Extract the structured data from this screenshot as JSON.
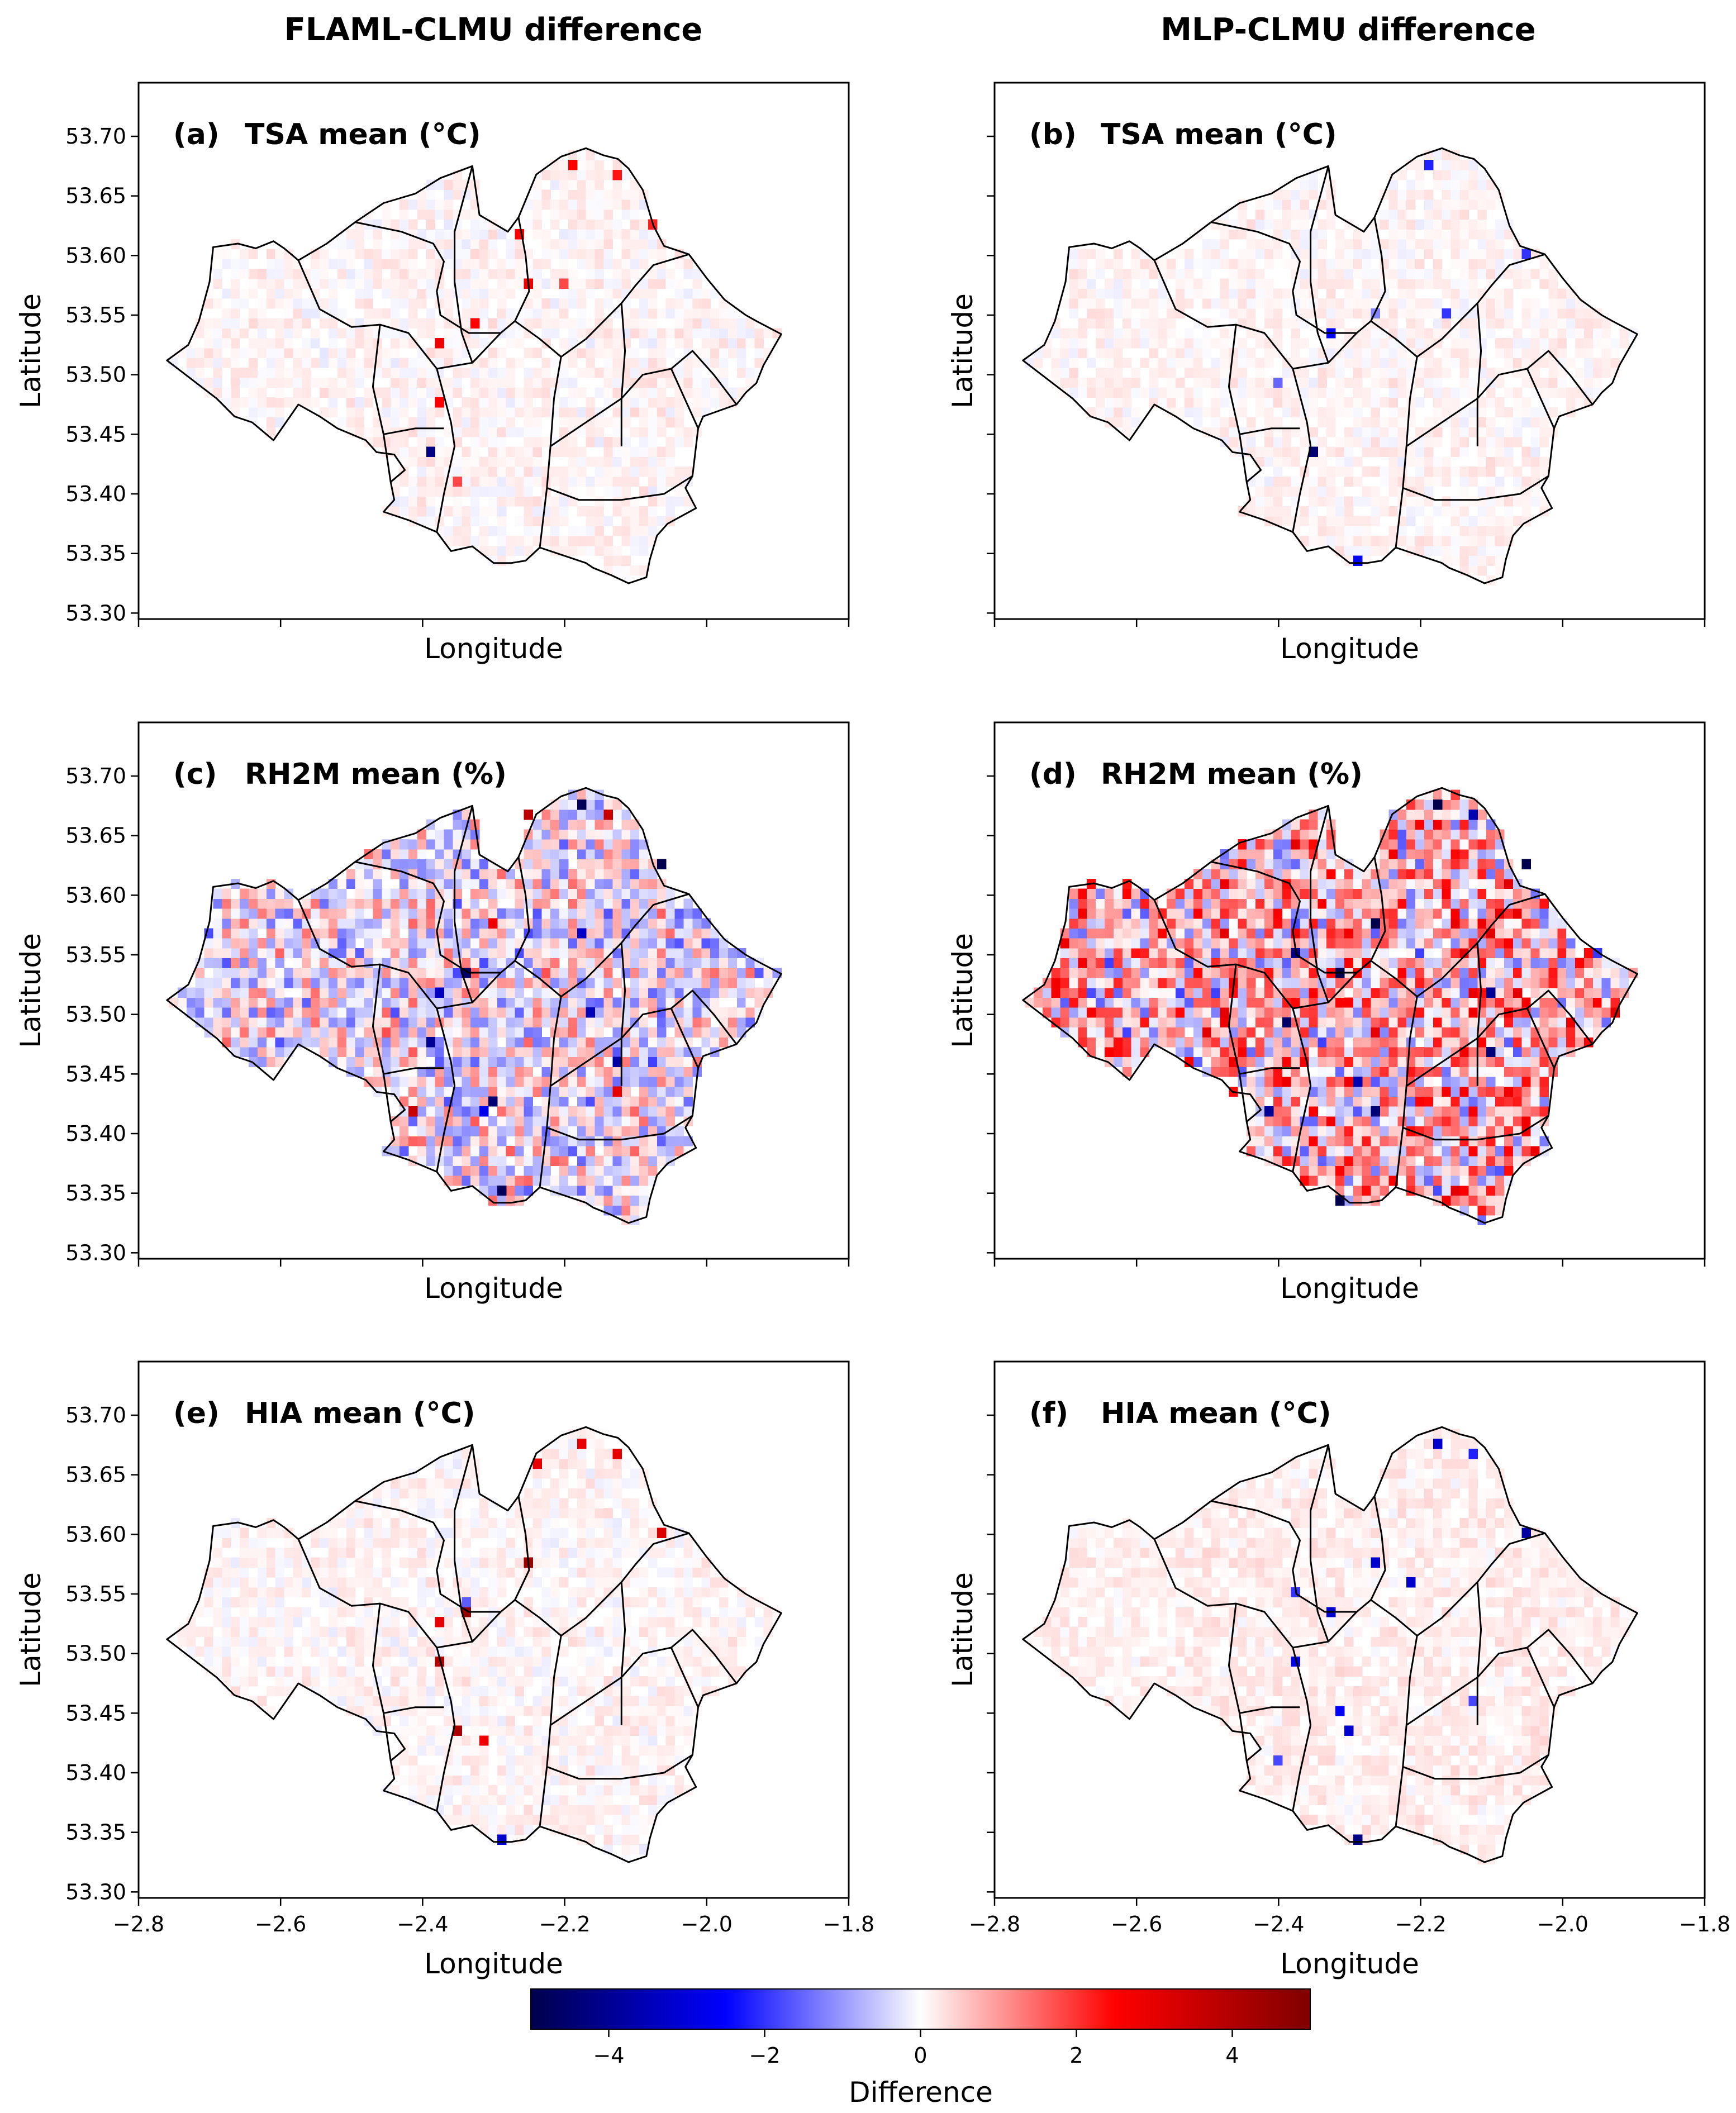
{
  "column_titles": [
    "FLAML-CLMU difference",
    "MLP-CLMU difference"
  ],
  "chart_data": [
    {
      "type": "heatmap",
      "panel": "(a)",
      "title": "TSA mean (°C)",
      "xlabel": "Longitude",
      "ylabel": "Latitude",
      "xlim": [
        -2.8,
        -1.8
      ],
      "ylim": [
        53.295,
        53.745
      ],
      "x_ticks": [
        "−2.8",
        "−2.6",
        "−2.4",
        "−2.2",
        "−2.0",
        "−1.8"
      ],
      "y_ticks": [
        "53.30",
        "53.35",
        "53.40",
        "53.45",
        "53.50",
        "53.55",
        "53.60",
        "53.65",
        "53.70"
      ],
      "x_tick_labels_shown": false,
      "y_tick_labels_shown": true,
      "intensity": 0.1,
      "noise_bias": 0.35,
      "hotspots": [
        [
          -2.395,
          53.437,
          -4.2
        ],
        [
          -2.33,
          53.542,
          2.5
        ],
        [
          -2.37,
          53.528,
          2.8
        ],
        [
          -2.38,
          53.48,
          2.5
        ],
        [
          -2.26,
          53.62,
          2.5
        ],
        [
          -2.25,
          53.58,
          2.8
        ],
        [
          -2.185,
          53.68,
          2.5
        ],
        [
          -2.13,
          53.67,
          2.3
        ],
        [
          -2.075,
          53.625,
          2.2
        ],
        [
          -2.2,
          53.58,
          1.8
        ],
        [
          -2.35,
          53.41,
          1.8
        ]
      ]
    },
    {
      "type": "heatmap",
      "panel": "(b)",
      "title": "TSA mean (°C)",
      "xlabel": "Longitude",
      "ylabel": "Latitude",
      "xlim": [
        -2.8,
        -1.8
      ],
      "ylim": [
        53.295,
        53.745
      ],
      "x_ticks": [
        "−2.8",
        "−2.6",
        "−2.4",
        "−2.2",
        "−2.0",
        "−1.8"
      ],
      "y_ticks": [
        "53.30",
        "53.35",
        "53.40",
        "53.45",
        "53.50",
        "53.55",
        "53.60",
        "53.65",
        "53.70"
      ],
      "x_tick_labels_shown": false,
      "y_tick_labels_shown": false,
      "intensity": 0.09,
      "noise_bias": 0.45,
      "hotspots": [
        [
          -2.33,
          53.537,
          -2.5
        ],
        [
          -2.345,
          53.432,
          -4.5
        ],
        [
          -2.29,
          53.345,
          -2.5
        ],
        [
          -2.185,
          53.68,
          -2.2
        ],
        [
          -2.05,
          53.6,
          -2.0
        ],
        [
          -2.165,
          53.55,
          -2.0
        ],
        [
          -2.4,
          53.49,
          -1.5
        ],
        [
          -2.27,
          53.55,
          -1.2
        ]
      ]
    },
    {
      "type": "heatmap",
      "panel": "(c)",
      "title": "RH2M mean (%)",
      "xlabel": "Longitude",
      "ylabel": "Latitude",
      "xlim": [
        -2.8,
        -1.8
      ],
      "ylim": [
        53.295,
        53.745
      ],
      "x_ticks": [
        "−2.8",
        "−2.6",
        "−2.4",
        "−2.2",
        "−2.0",
        "−1.8"
      ],
      "y_ticks": [
        "53.30",
        "53.35",
        "53.40",
        "53.45",
        "53.50",
        "53.55",
        "53.60",
        "53.65",
        "53.70"
      ],
      "x_tick_labels_shown": false,
      "y_tick_labels_shown": true,
      "intensity": 0.55,
      "noise_bias": -0.05,
      "hotspots": [
        [
          -2.335,
          53.537,
          -4.6
        ],
        [
          -2.38,
          53.522,
          -3.4
        ],
        [
          -2.39,
          53.48,
          -4.0
        ],
        [
          -2.3,
          53.43,
          -4.5
        ],
        [
          -2.29,
          53.35,
          -4.8
        ],
        [
          -2.25,
          53.67,
          3.8
        ],
        [
          -2.18,
          53.68,
          -4.8
        ],
        [
          -2.135,
          53.665,
          3.6
        ],
        [
          -2.065,
          53.625,
          -5.0
        ],
        [
          -2.3,
          53.58,
          2.8
        ],
        [
          -2.42,
          53.42,
          3.6
        ],
        [
          -2.16,
          53.5,
          -3.5
        ],
        [
          -2.13,
          53.46,
          -3.8
        ],
        [
          -2.12,
          53.435,
          3.0
        ],
        [
          -2.18,
          53.57,
          -3.3
        ],
        [
          -2.32,
          53.42,
          -2.8
        ]
      ]
    },
    {
      "type": "heatmap",
      "panel": "(d)",
      "title": "RH2M mean (%)",
      "xlabel": "Longitude",
      "ylabel": "Latitude",
      "xlim": [
        -2.8,
        -1.8
      ],
      "ylim": [
        53.295,
        53.745
      ],
      "x_ticks": [
        "−2.8",
        "−2.6",
        "−2.4",
        "−2.2",
        "−2.0",
        "−1.8"
      ],
      "y_ticks": [
        "53.30",
        "53.35",
        "53.40",
        "53.45",
        "53.50",
        "53.55",
        "53.60",
        "53.65",
        "53.70"
      ],
      "x_tick_labels_shown": false,
      "y_tick_labels_shown": false,
      "intensity": 0.8,
      "noise_bias": 0.35,
      "hotspots": [
        [
          -2.32,
          53.537,
          -5.0
        ],
        [
          -2.385,
          53.49,
          -4.6
        ],
        [
          -2.37,
          53.555,
          -4.2
        ],
        [
          -2.265,
          53.58,
          -5.0
        ],
        [
          -2.175,
          53.68,
          -5.0
        ],
        [
          -2.05,
          53.625,
          -5.0
        ],
        [
          -2.095,
          53.515,
          -4.0
        ],
        [
          -2.105,
          53.465,
          -4.4
        ],
        [
          -2.31,
          53.345,
          -5.0
        ],
        [
          -2.26,
          53.42,
          -4.4
        ],
        [
          -2.41,
          53.42,
          -4.0
        ],
        [
          -2.285,
          53.44,
          -3.6
        ],
        [
          -2.12,
          53.67,
          -3.6
        ]
      ]
    },
    {
      "type": "heatmap",
      "panel": "(e)",
      "title": "HIA mean (°C)",
      "xlabel": "Longitude",
      "ylabel": "Latitude",
      "xlim": [
        -2.8,
        -1.8
      ],
      "ylim": [
        53.295,
        53.745
      ],
      "x_ticks": [
        "−2.8",
        "−2.6",
        "−2.4",
        "−2.2",
        "−2.0",
        "−1.8"
      ],
      "y_ticks": [
        "53.30",
        "53.35",
        "53.40",
        "53.45",
        "53.50",
        "53.55",
        "53.60",
        "53.65",
        "53.70"
      ],
      "x_tick_labels_shown": true,
      "y_tick_labels_shown": true,
      "intensity": 0.1,
      "noise_bias": 0.35,
      "hotspots": [
        [
          -2.335,
          53.537,
          4.6
        ],
        [
          -2.37,
          53.528,
          3.0
        ],
        [
          -2.38,
          53.49,
          4.0
        ],
        [
          -2.35,
          53.435,
          4.2
        ],
        [
          -2.31,
          53.425,
          2.8
        ],
        [
          -2.25,
          53.58,
          4.4
        ],
        [
          -2.18,
          53.68,
          3.0
        ],
        [
          -2.24,
          53.66,
          3.0
        ],
        [
          -2.13,
          53.67,
          3.0
        ],
        [
          -2.065,
          53.6,
          3.2
        ],
        [
          -2.295,
          53.345,
          -3.2
        ],
        [
          -2.34,
          53.54,
          -1.6
        ]
      ]
    },
    {
      "type": "heatmap",
      "panel": "(f)",
      "title": "HIA mean (°C)",
      "xlabel": "Longitude",
      "ylabel": "Latitude",
      "xlim": [
        -2.8,
        -1.8
      ],
      "ylim": [
        53.295,
        53.745
      ],
      "x_ticks": [
        "−2.8",
        "−2.6",
        "−2.4",
        "−2.2",
        "−2.0",
        "−1.8"
      ],
      "y_ticks": [
        "53.30",
        "53.35",
        "53.40",
        "53.45",
        "53.50",
        "53.55",
        "53.60",
        "53.65",
        "53.70"
      ],
      "x_tick_labels_shown": true,
      "y_tick_labels_shown": false,
      "intensity": 0.09,
      "noise_bias": 0.75,
      "hotspots": [
        [
          -2.33,
          53.537,
          -3.2
        ],
        [
          -2.38,
          53.49,
          -2.8
        ],
        [
          -2.37,
          53.55,
          -2.0
        ],
        [
          -2.26,
          53.58,
          -3.2
        ],
        [
          -2.18,
          53.68,
          -3.2
        ],
        [
          -2.05,
          53.6,
          -3.8
        ],
        [
          -2.29,
          53.345,
          -4.2
        ],
        [
          -2.3,
          53.435,
          -3.2
        ],
        [
          -2.31,
          53.455,
          -2.6
        ],
        [
          -2.12,
          53.46,
          -1.8
        ],
        [
          -2.4,
          53.41,
          -1.8
        ],
        [
          -2.215,
          53.56,
          -3.2
        ],
        [
          -2.12,
          53.67,
          -2.2
        ]
      ]
    }
  ],
  "map": {
    "outline": [
      [
        -2.76,
        53.512
      ],
      [
        -2.73,
        53.525
      ],
      [
        -2.715,
        53.545
      ],
      [
        -2.7,
        53.578
      ],
      [
        -2.695,
        53.607
      ],
      [
        -2.66,
        53.61
      ],
      [
        -2.635,
        53.606
      ],
      [
        -2.61,
        53.612
      ],
      [
        -2.595,
        53.606
      ],
      [
        -2.575,
        53.596
      ],
      [
        -2.535,
        53.61
      ],
      [
        -2.495,
        53.628
      ],
      [
        -2.455,
        53.644
      ],
      [
        -2.41,
        53.652
      ],
      [
        -2.375,
        53.665
      ],
      [
        -2.33,
        53.675
      ],
      [
        -2.32,
        53.634
      ],
      [
        -2.28,
        53.62
      ],
      [
        -2.265,
        53.632
      ],
      [
        -2.24,
        53.668
      ],
      [
        -2.205,
        53.683
      ],
      [
        -2.17,
        53.69
      ],
      [
        -2.145,
        53.684
      ],
      [
        -2.125,
        53.681
      ],
      [
        -2.11,
        53.673
      ],
      [
        -2.09,
        53.655
      ],
      [
        -2.075,
        53.625
      ],
      [
        -2.06,
        53.608
      ],
      [
        -2.025,
        53.601
      ],
      [
        -2.0,
        53.581
      ],
      [
        -1.975,
        53.563
      ],
      [
        -1.945,
        53.55
      ],
      [
        -1.93,
        53.545
      ],
      [
        -1.895,
        53.534
      ],
      [
        -1.92,
        53.508
      ],
      [
        -1.93,
        53.493
      ],
      [
        -1.945,
        53.485
      ],
      [
        -1.958,
        53.475
      ],
      [
        -2.005,
        53.465
      ],
      [
        -2.012,
        53.455
      ],
      [
        -2.02,
        53.415
      ],
      [
        -2.03,
        53.405
      ],
      [
        -2.015,
        53.388
      ],
      [
        -2.055,
        53.375
      ],
      [
        -2.07,
        53.365
      ],
      [
        -2.08,
        53.345
      ],
      [
        -2.085,
        53.33
      ],
      [
        -2.11,
        53.325
      ],
      [
        -2.135,
        53.332
      ],
      [
        -2.16,
        53.338
      ],
      [
        -2.17,
        53.342
      ],
      [
        -2.19,
        53.346
      ],
      [
        -2.21,
        53.35
      ],
      [
        -2.235,
        53.355
      ],
      [
        -2.255,
        53.344
      ],
      [
        -2.275,
        53.342
      ],
      [
        -2.3,
        53.342
      ],
      [
        -2.33,
        53.356
      ],
      [
        -2.36,
        53.352
      ],
      [
        -2.38,
        53.368
      ],
      [
        -2.42,
        53.378
      ],
      [
        -2.455,
        53.385
      ],
      [
        -2.44,
        53.395
      ],
      [
        -2.445,
        53.41
      ],
      [
        -2.425,
        53.42
      ],
      [
        -2.44,
        53.433
      ],
      [
        -2.465,
        53.435
      ],
      [
        -2.48,
        53.445
      ],
      [
        -2.52,
        53.455
      ],
      [
        -2.545,
        53.465
      ],
      [
        -2.575,
        53.475
      ],
      [
        -2.61,
        53.445
      ],
      [
        -2.64,
        53.46
      ],
      [
        -2.665,
        53.465
      ],
      [
        -2.69,
        53.48
      ]
    ],
    "boundaries": [
      [
        [
          -2.575,
          53.596
        ],
        [
          -2.545,
          53.555
        ],
        [
          -2.5,
          53.54
        ],
        [
          -2.46,
          53.542
        ],
        [
          -2.42,
          53.535
        ],
        [
          -2.38,
          53.505
        ],
        [
          -2.33,
          53.51
        ],
        [
          -2.29,
          53.535
        ],
        [
          -2.27,
          53.545
        ],
        [
          -2.235,
          53.53
        ],
        [
          -2.205,
          53.515
        ],
        [
          -2.17,
          53.53
        ],
        [
          -2.12,
          53.56
        ],
        [
          -2.1,
          53.575
        ],
        [
          -2.075,
          53.592
        ],
        [
          -2.025,
          53.601
        ]
      ],
      [
        [
          -2.495,
          53.628
        ],
        [
          -2.43,
          53.62
        ],
        [
          -2.385,
          53.61
        ],
        [
          -2.37,
          53.595
        ],
        [
          -2.38,
          53.57
        ],
        [
          -2.375,
          53.55
        ],
        [
          -2.335,
          53.535
        ],
        [
          -2.29,
          53.535
        ]
      ],
      [
        [
          -2.33,
          53.675
        ],
        [
          -2.355,
          53.62
        ],
        [
          -2.355,
          53.578
        ],
        [
          -2.345,
          53.535
        ],
        [
          -2.33,
          53.51
        ]
      ],
      [
        [
          -2.265,
          53.632
        ],
        [
          -2.255,
          53.6
        ],
        [
          -2.25,
          53.57
        ],
        [
          -2.27,
          53.545
        ]
      ],
      [
        [
          -2.46,
          53.542
        ],
        [
          -2.47,
          53.49
        ],
        [
          -2.455,
          53.45
        ],
        [
          -2.445,
          53.41
        ]
      ],
      [
        [
          -2.38,
          53.505
        ],
        [
          -2.36,
          53.46
        ],
        [
          -2.355,
          53.44
        ],
        [
          -2.37,
          53.4
        ],
        [
          -2.38,
          53.368
        ]
      ],
      [
        [
          -2.205,
          53.515
        ],
        [
          -2.215,
          53.48
        ],
        [
          -2.22,
          53.44
        ],
        [
          -2.225,
          53.405
        ],
        [
          -2.235,
          53.355
        ]
      ],
      [
        [
          -2.12,
          53.56
        ],
        [
          -2.115,
          53.52
        ],
        [
          -2.12,
          53.48
        ],
        [
          -2.12,
          53.44
        ]
      ],
      [
        [
          -2.455,
          53.45
        ],
        [
          -2.41,
          53.455
        ],
        [
          -2.37,
          53.455
        ]
      ],
      [
        [
          -2.22,
          53.44
        ],
        [
          -2.17,
          53.46
        ],
        [
          -2.12,
          53.48
        ],
        [
          -2.09,
          53.5
        ],
        [
          -2.05,
          53.505
        ],
        [
          -2.012,
          53.455
        ]
      ],
      [
        [
          -2.225,
          53.405
        ],
        [
          -2.18,
          53.395
        ],
        [
          -2.12,
          53.395
        ],
        [
          -2.06,
          53.4
        ],
        [
          -2.02,
          53.415
        ]
      ],
      [
        [
          -1.958,
          53.475
        ],
        [
          -1.99,
          53.5
        ],
        [
          -2.02,
          53.52
        ],
        [
          -2.05,
          53.505
        ]
      ]
    ]
  },
  "colorbar": {
    "label": "Difference",
    "vmin": -5,
    "vmax": 5,
    "ticks": [
      "−4",
      "−2",
      "0",
      "2",
      "4"
    ],
    "tick_values": [
      -4,
      -2,
      0,
      2,
      4
    ],
    "colormap": "seismic",
    "colors": [
      "#00004c",
      "#0000ff",
      "#ffffff",
      "#ff0000",
      "#800000"
    ]
  }
}
